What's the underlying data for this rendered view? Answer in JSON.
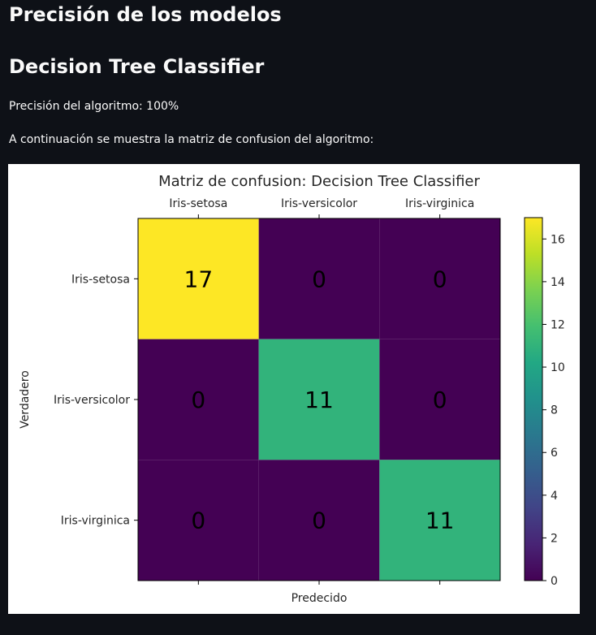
{
  "page": {
    "heading": "Precisión de los modelos",
    "subheading": "Decision Tree Classifier",
    "accuracy_text": "Precisión del algoritmo: 100%",
    "intro_text": "A continuación se muestra la matriz de confusion del algoritmo:"
  },
  "colors": {
    "background": "#0e1117",
    "text": "#fafafa",
    "figure_background": "#ffffff"
  },
  "chart_data": {
    "type": "heatmap",
    "title": "Matriz de confusion: Decision Tree Classifier",
    "xlabel": "Predecido",
    "ylabel": "Verdadero",
    "x_categories": [
      "Iris-setosa",
      "Iris-versicolor",
      "Iris-virginica"
    ],
    "y_categories": [
      "Iris-setosa",
      "Iris-versicolor",
      "Iris-virginica"
    ],
    "matrix": [
      [
        17,
        0,
        0
      ],
      [
        0,
        11,
        0
      ],
      [
        0,
        0,
        11
      ]
    ],
    "colormap": "viridis",
    "colorbar": {
      "range": [
        0,
        17
      ],
      "ticks": [
        0,
        2,
        4,
        6,
        8,
        10,
        12,
        14,
        16
      ]
    },
    "x_ticks_position": "top",
    "grid": false
  }
}
